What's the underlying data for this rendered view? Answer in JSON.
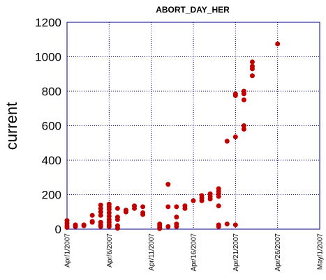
{
  "chart_data": {
    "type": "scatter",
    "title": "ABORT_DAY_HER",
    "xlabel": "",
    "ylabel": "current",
    "xlim": [
      "2007-04-01",
      "2007-05-01"
    ],
    "ylim": [
      0,
      1200
    ],
    "yticks": [
      0,
      200,
      400,
      600,
      800,
      1000,
      1200
    ],
    "xticks": [
      "2007-04-01",
      "2007-04-06",
      "2007-04-11",
      "2007-04-16",
      "2007-04-21",
      "2007-04-26",
      "2007-05-01"
    ],
    "xtick_labels": [
      "Apr/1/2007",
      "Apr/6/2007",
      "Apr/11/2007",
      "Apr/16/2007",
      "Apr/21/2007",
      "Apr/26/2007",
      "May/1/2007"
    ],
    "grid": true,
    "marker_color": "#c00000",
    "points": [
      [
        "2007-04-01",
        50
      ],
      [
        "2007-04-01",
        35
      ],
      [
        "2007-04-01",
        20
      ],
      [
        "2007-04-01",
        10
      ],
      [
        "2007-04-02",
        25
      ],
      [
        "2007-04-02",
        15
      ],
      [
        "2007-04-03",
        25
      ],
      [
        "2007-04-03",
        20
      ],
      [
        "2007-04-04",
        80
      ],
      [
        "2007-04-04",
        45
      ],
      [
        "2007-04-04",
        40
      ],
      [
        "2007-04-05",
        140
      ],
      [
        "2007-04-05",
        120
      ],
      [
        "2007-04-05",
        100
      ],
      [
        "2007-04-05",
        80
      ],
      [
        "2007-04-05",
        40
      ],
      [
        "2007-04-05",
        25
      ],
      [
        "2007-04-05",
        15
      ],
      [
        "2007-04-06",
        145
      ],
      [
        "2007-04-06",
        130
      ],
      [
        "2007-04-06",
        115
      ],
      [
        "2007-04-06",
        95
      ],
      [
        "2007-04-06",
        75
      ],
      [
        "2007-04-06",
        55
      ],
      [
        "2007-04-06",
        40
      ],
      [
        "2007-04-06",
        25
      ],
      [
        "2007-04-06",
        15
      ],
      [
        "2007-04-07",
        120
      ],
      [
        "2007-04-07",
        70
      ],
      [
        "2007-04-07",
        55
      ],
      [
        "2007-04-07",
        20
      ],
      [
        "2007-04-07",
        5
      ],
      [
        "2007-04-08",
        110
      ],
      [
        "2007-04-08",
        100
      ],
      [
        "2007-04-09",
        135
      ],
      [
        "2007-04-09",
        120
      ],
      [
        "2007-04-10",
        130
      ],
      [
        "2007-04-10",
        95
      ],
      [
        "2007-04-10",
        85
      ],
      [
        "2007-04-12",
        30
      ],
      [
        "2007-04-12",
        20
      ],
      [
        "2007-04-12",
        10
      ],
      [
        "2007-04-12",
        3
      ],
      [
        "2007-04-13",
        260
      ],
      [
        "2007-04-13",
        130
      ],
      [
        "2007-04-13",
        15
      ],
      [
        "2007-04-14",
        130
      ],
      [
        "2007-04-14",
        70
      ],
      [
        "2007-04-14",
        30
      ],
      [
        "2007-04-14",
        15
      ],
      [
        "2007-04-15",
        135
      ],
      [
        "2007-04-15",
        120
      ],
      [
        "2007-04-16",
        165
      ],
      [
        "2007-04-17",
        195
      ],
      [
        "2007-04-17",
        180
      ],
      [
        "2007-04-17",
        165
      ],
      [
        "2007-04-18",
        205
      ],
      [
        "2007-04-18",
        190
      ],
      [
        "2007-04-18",
        175
      ],
      [
        "2007-04-19",
        235
      ],
      [
        "2007-04-19",
        220
      ],
      [
        "2007-04-19",
        205
      ],
      [
        "2007-04-19",
        190
      ],
      [
        "2007-04-19",
        135
      ],
      [
        "2007-04-19",
        25
      ],
      [
        "2007-04-19",
        15
      ],
      [
        "2007-04-20",
        510
      ],
      [
        "2007-04-20",
        30
      ],
      [
        "2007-04-21",
        785
      ],
      [
        "2007-04-21",
        775
      ],
      [
        "2007-04-21",
        535
      ],
      [
        "2007-04-21",
        25
      ],
      [
        "2007-04-22",
        800
      ],
      [
        "2007-04-22",
        785
      ],
      [
        "2007-04-22",
        750
      ],
      [
        "2007-04-22",
        600
      ],
      [
        "2007-04-22",
        580
      ],
      [
        "2007-04-23",
        970
      ],
      [
        "2007-04-23",
        945
      ],
      [
        "2007-04-23",
        930
      ],
      [
        "2007-04-23",
        890
      ],
      [
        "2007-04-26",
        1075
      ]
    ]
  }
}
